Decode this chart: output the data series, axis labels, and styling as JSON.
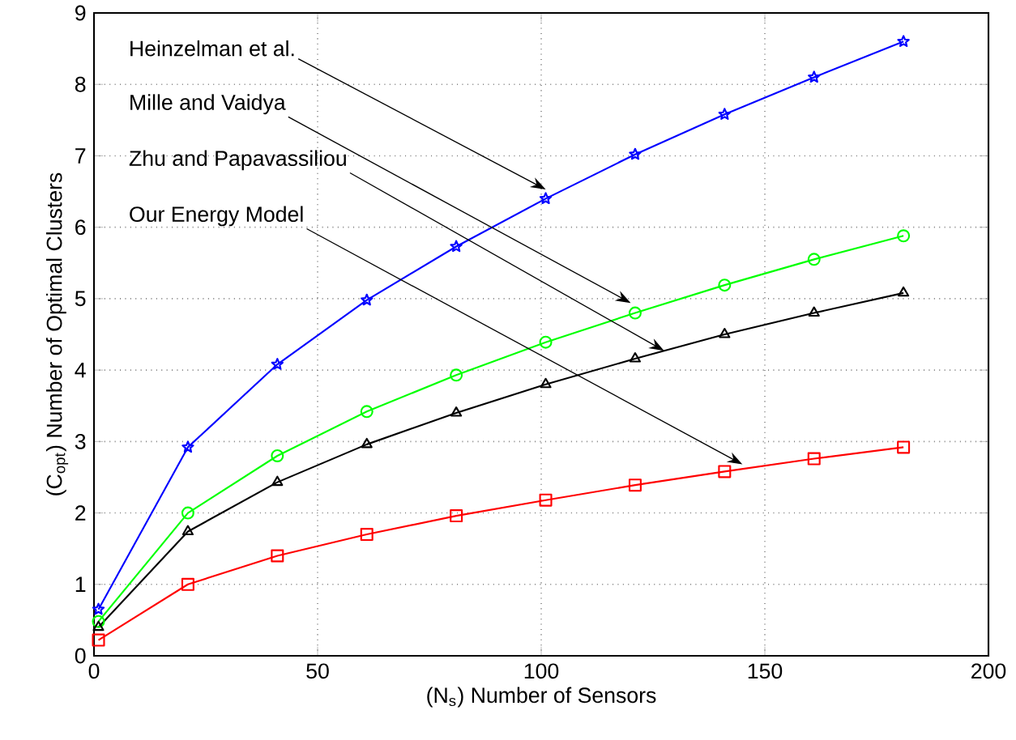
{
  "chart_data": {
    "type": "line",
    "xlabel": "(N$_{s}$) Number of Sensors",
    "ylabel": "(C$_{opt}$) Number of Optimal Clusters",
    "x": [
      1,
      21,
      41,
      61,
      81,
      101,
      121,
      141,
      161,
      181
    ],
    "xlim": [
      0,
      200
    ],
    "xticks": [
      0,
      50,
      100,
      150,
      200
    ],
    "ylim": [
      0,
      9
    ],
    "yticks": [
      0,
      1,
      2,
      3,
      4,
      5,
      6,
      7,
      8,
      9
    ],
    "grid": true,
    "series": [
      {
        "color": "#0000ff",
        "marker": "star",
        "values": [
          0.65,
          2.92,
          4.08,
          4.98,
          5.73,
          6.4,
          7.02,
          7.58,
          8.1,
          8.6
        ]
      },
      {
        "color": "#00ff00",
        "marker": "circle",
        "values": [
          0.48,
          2.0,
          2.8,
          3.42,
          3.93,
          4.39,
          4.8,
          5.19,
          5.55,
          5.88
        ]
      },
      {
        "color": "#000000",
        "marker": "triangle",
        "values": [
          0.4,
          1.74,
          2.43,
          2.96,
          3.4,
          3.8,
          4.16,
          4.5,
          4.8,
          5.08
        ]
      },
      {
        "color": "#ff0000",
        "marker": "square",
        "values": [
          0.22,
          1.0,
          1.4,
          1.7,
          1.96,
          2.18,
          2.39,
          2.58,
          2.76,
          2.92
        ]
      }
    ],
    "annotations": [
      {
        "text": "Heinzelman et al.",
        "x": 101,
        "y": 6.53
      },
      {
        "text": "Mille and Vaidya",
        "x": 120,
        "y": 4.94
      },
      {
        "text": "Zhu and Papavassiliou",
        "x": 127.5,
        "y": 4.27
      },
      {
        "text": "Our Energy Model",
        "x": 145,
        "y": 2.68
      }
    ]
  }
}
